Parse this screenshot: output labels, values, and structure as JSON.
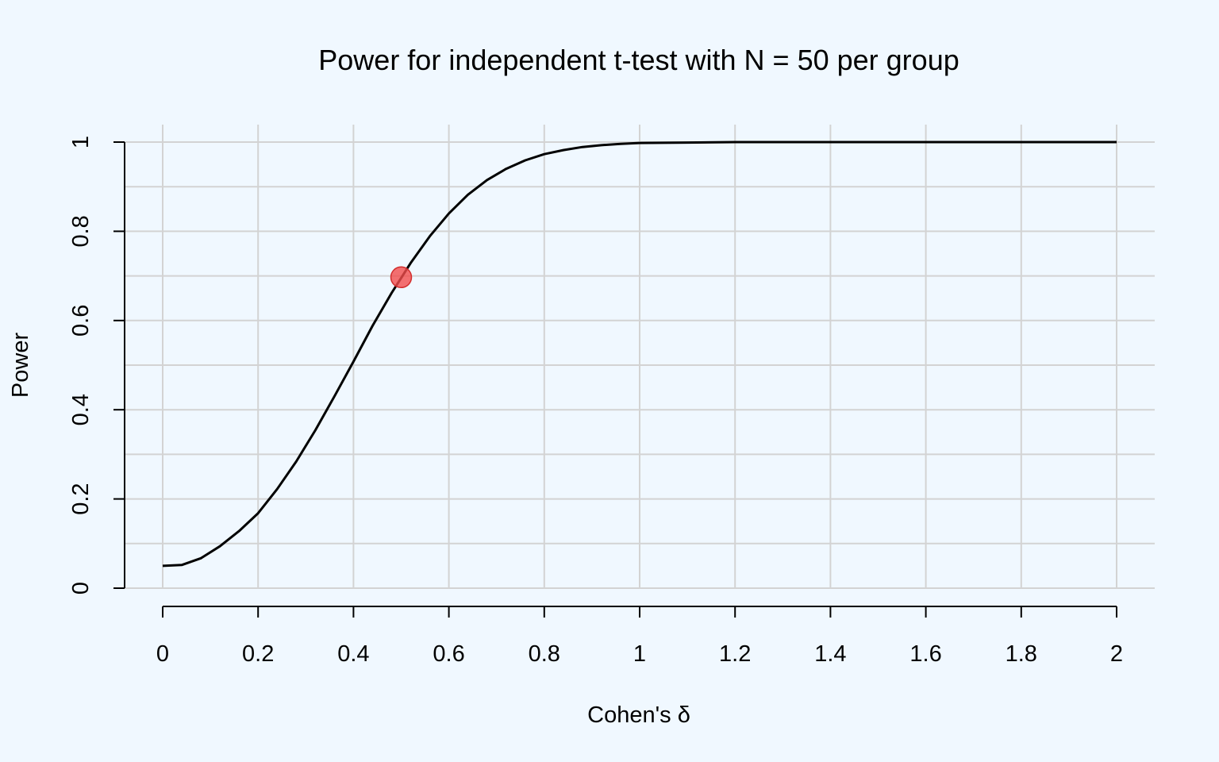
{
  "chart_data": {
    "type": "line",
    "title": "Power for independent t-test with N = 50 per group",
    "xlabel": "Cohen's δ",
    "ylabel": "Power",
    "xlim": [
      0,
      2
    ],
    "ylim": [
      0,
      1
    ],
    "x_ticks": [
      0,
      0.2,
      0.4,
      0.6,
      0.8,
      1,
      1.2,
      1.4,
      1.6,
      1.8,
      2
    ],
    "x_tick_labels": [
      "0",
      "0.2",
      "0.4",
      "0.6",
      "0.8",
      "1",
      "1.2",
      "1.4",
      "1.6",
      "1.8",
      "2"
    ],
    "y_ticks": [
      0,
      0.2,
      0.4,
      0.6,
      0.8,
      1
    ],
    "y_tick_labels": [
      "0",
      "0.2",
      "0.4",
      "0.6",
      "0.8",
      "1"
    ],
    "y_minor_grid": [
      0.1,
      0.3,
      0.5,
      0.7,
      0.9
    ],
    "grid": true,
    "legend": "none",
    "series": [
      {
        "x": [
          0,
          0.04,
          0.08,
          0.12,
          0.16,
          0.2,
          0.24,
          0.28,
          0.32,
          0.36,
          0.4,
          0.44,
          0.48,
          0.52,
          0.56,
          0.6,
          0.64,
          0.68,
          0.72,
          0.76,
          0.8,
          0.84,
          0.88,
          0.92,
          0.96,
          1.0,
          1.1,
          1.2,
          1.4,
          1.6,
          1.8,
          2.0
        ],
        "y": [
          0.05,
          0.052,
          0.067,
          0.094,
          0.128,
          0.168,
          0.222,
          0.284,
          0.354,
          0.43,
          0.508,
          0.588,
          0.662,
          0.729,
          0.789,
          0.84,
          0.882,
          0.915,
          0.94,
          0.959,
          0.973,
          0.982,
          0.989,
          0.993,
          0.996,
          0.998,
          0.999,
          1.0,
          1.0,
          1.0,
          1.0,
          1.0
        ],
        "color": "#000000"
      }
    ],
    "highlight_point": {
      "x": 0.5,
      "y": 0.697,
      "color": "#f24c4c"
    },
    "background": "#f0f8ff",
    "grid_color": "#d3d3d3"
  }
}
